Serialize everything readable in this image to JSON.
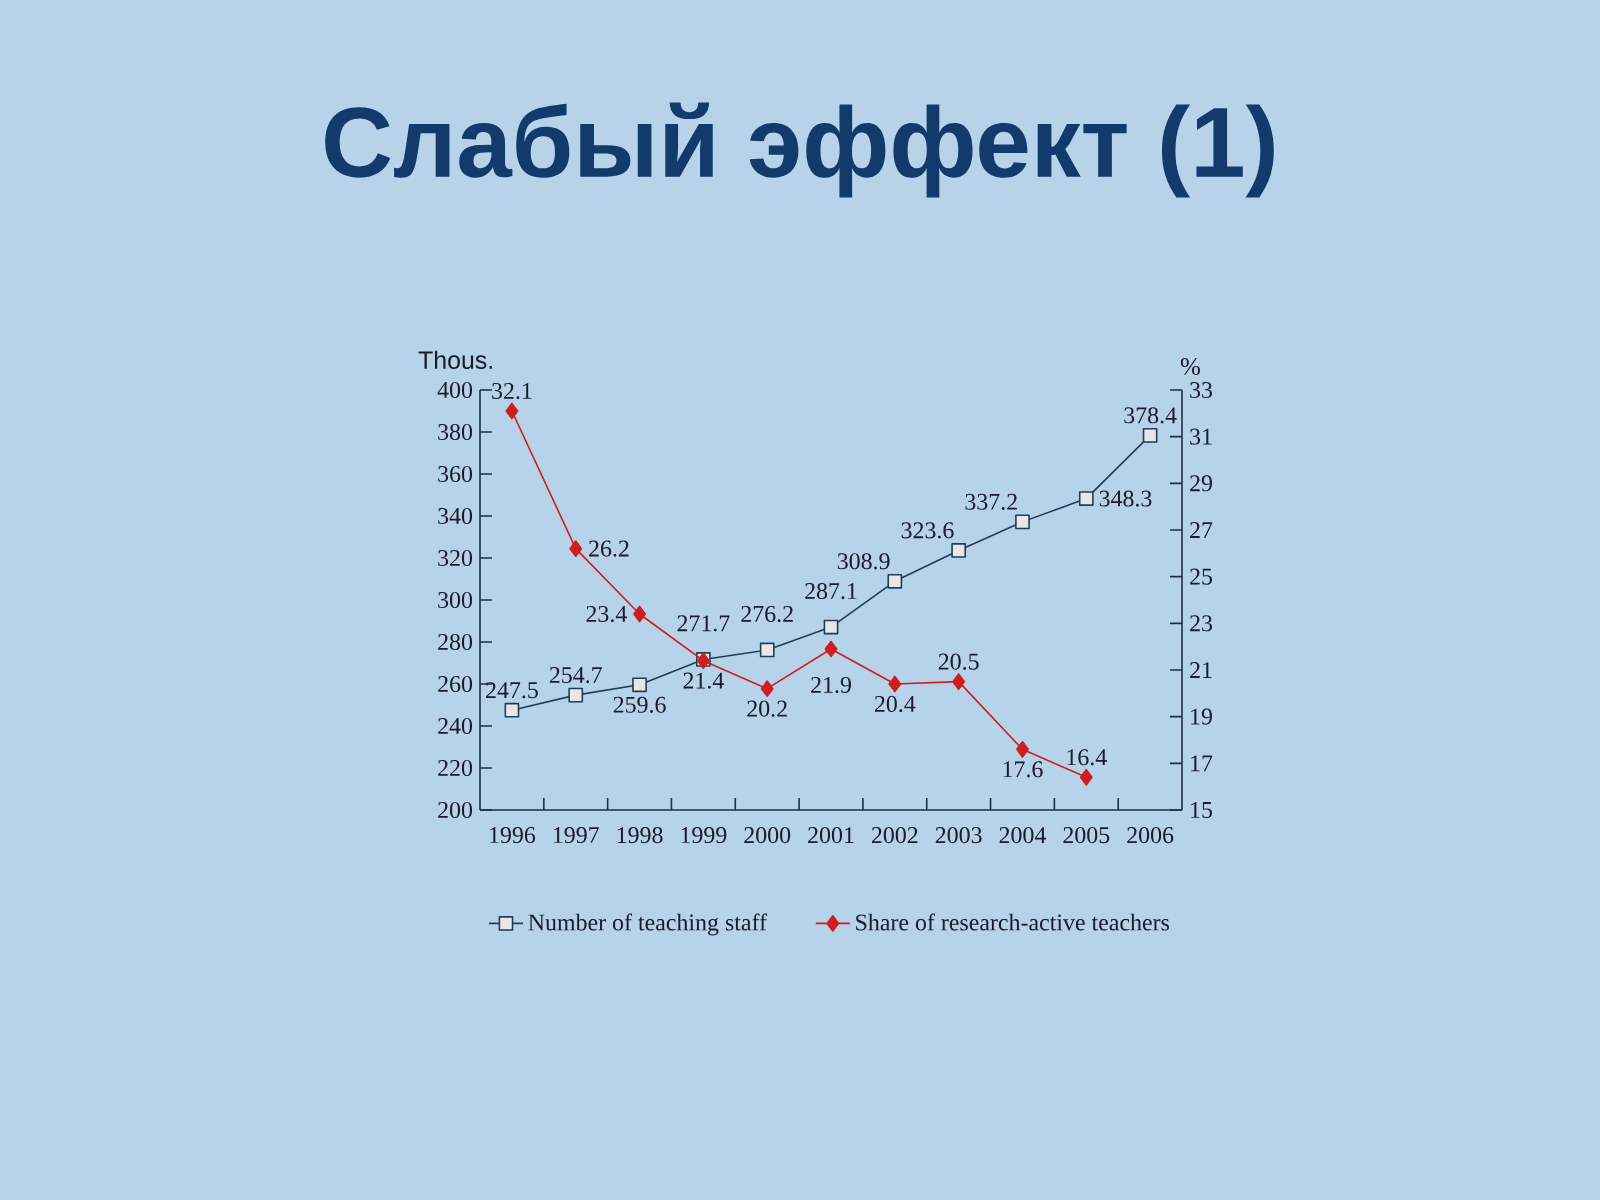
{
  "chart_data": {
    "type": "line",
    "title": "Слабый эффект (1)",
    "ylabel": "Thous.",
    "y2label": "%",
    "categories": [
      "1996",
      "1997",
      "1998",
      "1999",
      "2000",
      "2001",
      "2002",
      "2003",
      "2004",
      "2005",
      "2006"
    ],
    "ylim": [
      200,
      400
    ],
    "yticks": [
      200,
      220,
      240,
      260,
      280,
      300,
      320,
      340,
      360,
      380,
      400
    ],
    "y2lim": [
      15,
      33
    ],
    "y2ticks": [
      15,
      17,
      19,
      21,
      23,
      25,
      27,
      29,
      31,
      33
    ],
    "series": [
      {
        "name": "Number of teaching staff",
        "color": "#243c56",
        "marker": "square",
        "values": [
          247.5,
          254.7,
          259.6,
          271.7,
          276.2,
          287.1,
          308.9,
          323.6,
          337.2,
          348.3,
          378.4
        ]
      },
      {
        "name": "Share of research-active teachers",
        "color": "#cc1f1f",
        "marker": "diamond",
        "axis": "y2",
        "values": [
          32.1,
          26.2,
          23.4,
          21.4,
          20.2,
          21.9,
          20.4,
          20.5,
          17.6,
          16.4,
          null
        ]
      }
    ],
    "data_labels": true,
    "legend": "bottom"
  }
}
